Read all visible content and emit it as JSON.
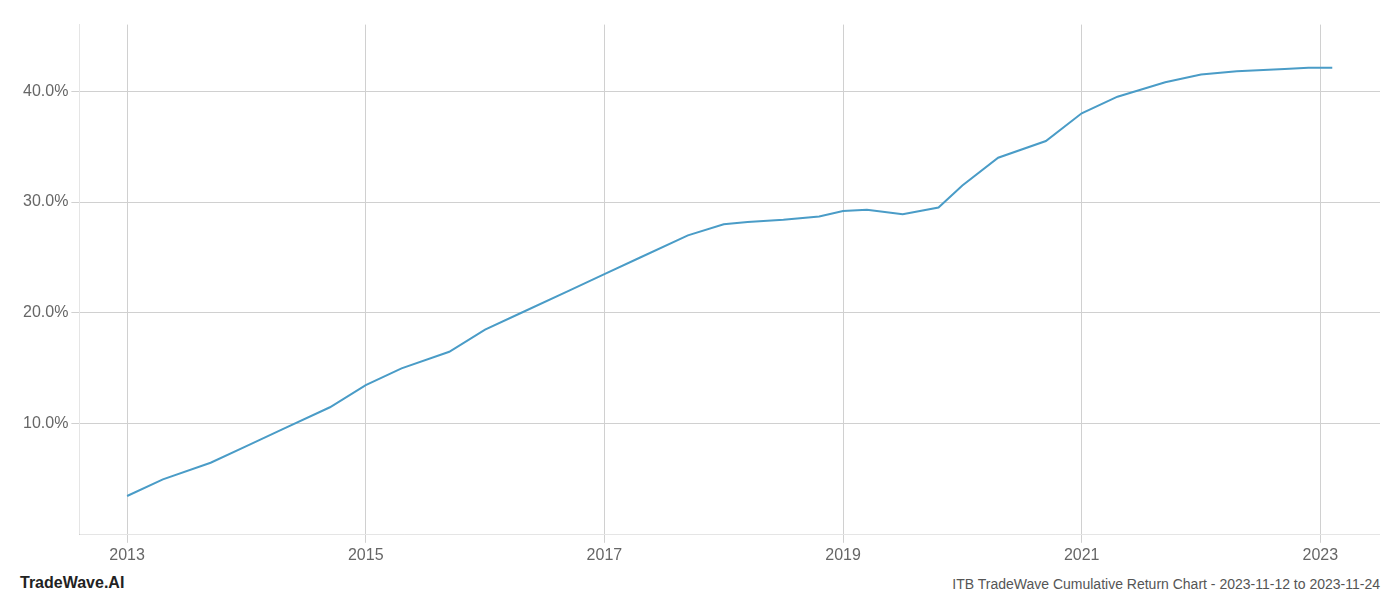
{
  "chart_data": {
    "type": "line",
    "title": "ITB TradeWave Cumulative Return Chart - 2023-11-12 to 2023-11-24",
    "annotations": [
      "TradeWave.AI"
    ],
    "color": "#4a9cc7",
    "x": [
      2013.0,
      2013.3,
      2013.7,
      2014.0,
      2014.3,
      2014.7,
      2015.0,
      2015.3,
      2015.7,
      2016.0,
      2016.3,
      2016.7,
      2017.0,
      2017.3,
      2017.7,
      2018.0,
      2018.2,
      2018.5,
      2018.8,
      2019.0,
      2019.2,
      2019.5,
      2019.8,
      2020.0,
      2020.3,
      2020.7,
      2021.0,
      2021.3,
      2021.7,
      2022.0,
      2022.3,
      2022.7,
      2022.9,
      2023.0,
      2023.1
    ],
    "values": [
      3.5,
      5.0,
      6.5,
      8.0,
      9.5,
      11.5,
      13.5,
      15.0,
      16.5,
      18.5,
      20.0,
      22.0,
      23.5,
      25.0,
      27.0,
      28.0,
      28.2,
      28.4,
      28.7,
      29.2,
      29.3,
      28.9,
      29.5,
      31.5,
      34.0,
      35.5,
      38.0,
      39.5,
      40.8,
      41.5,
      41.8,
      42.0,
      42.1,
      42.1,
      42.1
    ],
    "xlim": [
      2012.6,
      2023.5
    ],
    "xticks": [
      2013,
      2015,
      2017,
      2019,
      2021,
      2023
    ],
    "ylim": [
      0,
      46
    ],
    "yticks": [
      {
        "value": 10.0,
        "label": "10.0%"
      },
      {
        "value": 20.0,
        "label": "20.0%"
      },
      {
        "value": 30.0,
        "label": "30.0%"
      },
      {
        "value": 40.0,
        "label": "40.0%"
      }
    ],
    "grid": true
  }
}
